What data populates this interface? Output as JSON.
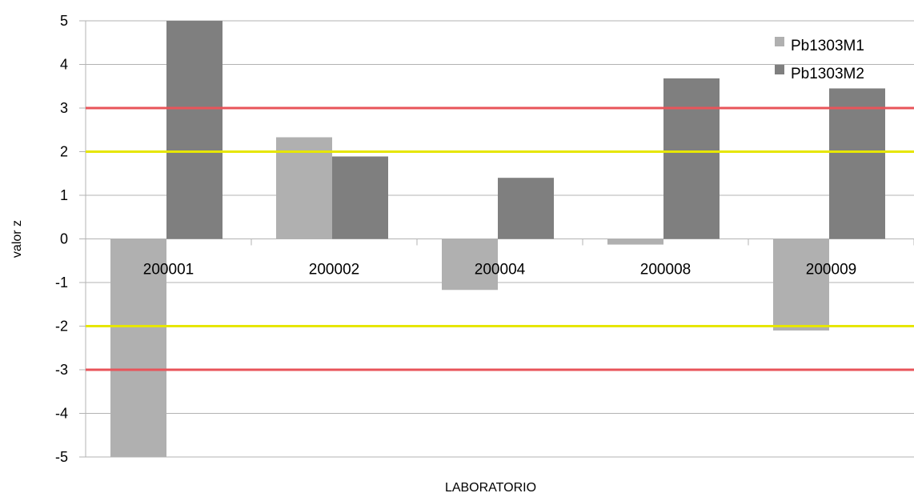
{
  "chart_data": {
    "type": "bar",
    "title": "",
    "xlabel": "LABORATORIO",
    "ylabel": "valor z",
    "ylim": [
      -5,
      5
    ],
    "yticks": [
      5,
      4,
      3,
      2,
      1,
      0,
      -1,
      -2,
      -3,
      -4,
      -5
    ],
    "grid": true,
    "legend_position": "top-right",
    "categories": [
      "200001",
      "200002",
      "200004",
      "200008",
      "200009"
    ],
    "series": [
      {
        "name": "Pb1303M1",
        "color": "#b0b0b0",
        "values": [
          -5.0,
          2.33,
          -1.17,
          -0.13,
          -2.1
        ]
      },
      {
        "name": "Pb1303M2",
        "color": "#7f7f7f",
        "values": [
          5.0,
          1.89,
          1.4,
          3.68,
          3.45
        ]
      }
    ],
    "reference_lines": [
      {
        "y": 3,
        "color": "#e8545a"
      },
      {
        "y": 2,
        "color": "#e6e600"
      },
      {
        "y": -2,
        "color": "#e6e600"
      },
      {
        "y": -3,
        "color": "#e8545a"
      }
    ]
  }
}
